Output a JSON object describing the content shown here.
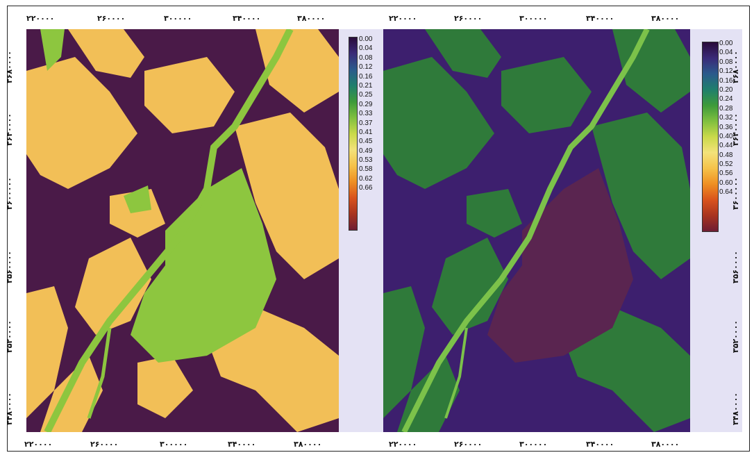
{
  "maps": [
    {
      "id": "left",
      "colors": {
        "low": "#4a1a48",
        "green": "#8dc63f",
        "yellow": "#f2bf57",
        "mid": "#3b2a78"
      },
      "x_ticks": [
        "۲۲۰۰۰۰",
        "۲۶۰۰۰۰",
        "۳۰۰۰۰۰",
        "۳۴۰۰۰۰",
        "۳۸۰۰۰۰"
      ],
      "x_ticks_bottom": [
        "۲۲۰۰۰۰",
        "۲۶۰۰۰۰",
        "۳۰۰۰۰۰",
        "۳۴۰۰۰۰",
        "۳۸۰۰۰۰"
      ],
      "y_ticks": [
        "۳۶۸۰۰۰۰",
        "۳۶۴۰۰۰۰",
        "۳۶۰۰۰۰۰",
        "۳۵۶۰۰۰۰",
        "۳۵۲۰۰۰۰",
        "۳۴۸۰۰۰۰"
      ],
      "colorbar": {
        "labels": [
          "0.00",
          "0.04",
          "0.08",
          "0.12",
          "0.16",
          "0.21",
          "0.25",
          "0.29",
          "0.33",
          "0.37",
          "0.41",
          "0.45",
          "0.49",
          "0.53",
          "0.58",
          "0.62",
          "0.66"
        ],
        "stops": [
          "#2a0b3a",
          "#3a2a78",
          "#2b5a8c",
          "#1f7f6c",
          "#3d9a3a",
          "#7fbf3f",
          "#c9d94a",
          "#f3e27a",
          "#f5c24a",
          "#ef8f23",
          "#d9531d",
          "#a8341f",
          "#6e1e33"
        ]
      }
    },
    {
      "id": "right",
      "colors": {
        "low": "#3d1f6e",
        "green": "#2f7a3a",
        "light": "#7cc24a",
        "purple": "#5a2550"
      },
      "x_ticks": [
        "۲۲۰۰۰۰",
        "۲۶۰۰۰۰",
        "۳۰۰۰۰۰",
        "۳۴۰۰۰۰",
        "۳۸۰۰۰۰"
      ],
      "x_ticks_bottom": [
        "۲۲۰۰۰۰",
        "۲۶۰۰۰۰",
        "۳۰۰۰۰۰",
        "۳۴۰۰۰۰",
        "۳۸۰۰۰۰"
      ],
      "y_ticks": [
        "۳۶۸۰۰۰۰",
        "۳۶۴۰۰۰۰",
        "۳۶۰۰۰۰۰",
        "۳۵۶۰۰۰۰",
        "۳۵۲۰۰۰۰",
        "۳۴۸۰۰۰۰"
      ],
      "colorbar": {
        "labels": [
          "0.00",
          "0.04",
          "0.08",
          "0.12",
          "0.16",
          "0.20",
          "0.24",
          "0.28",
          "0.32",
          "0.36",
          "0.40",
          "0.44",
          "0.48",
          "0.52",
          "0.56",
          "0.60",
          "0.64"
        ],
        "stops": [
          "#2a0b3a",
          "#3a2a78",
          "#2b5a8c",
          "#1f7f6c",
          "#3d9a3a",
          "#7fbf3f",
          "#c9d94a",
          "#f3e27a",
          "#f5c24a",
          "#ef8f23",
          "#d9531d",
          "#a8341f",
          "#6e1e33"
        ]
      }
    }
  ]
}
